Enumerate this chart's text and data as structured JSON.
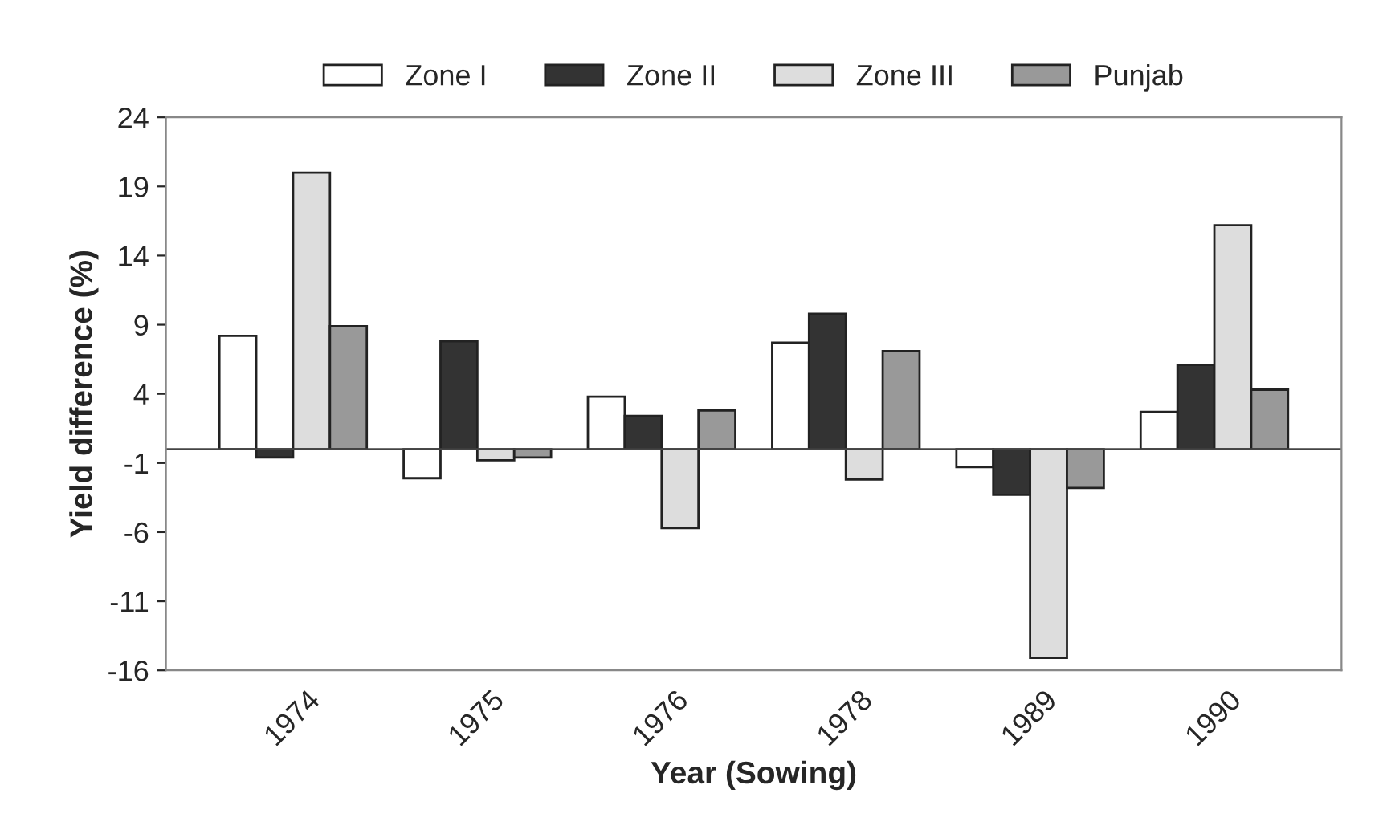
{
  "chart_data": {
    "type": "bar",
    "xlabel": "Year (Sowing)",
    "ylabel": "Yield difference (%)",
    "categories": [
      "1974",
      "1975",
      "1976",
      "1978",
      "1989",
      "1990"
    ],
    "series": [
      {
        "name": "Zone I",
        "color": "#ffffff",
        "values": [
          8.2,
          -2.1,
          3.8,
          7.7,
          -1.3,
          2.7
        ]
      },
      {
        "name": "Zone II",
        "color": "#333333",
        "values": [
          -0.6,
          7.8,
          2.4,
          9.8,
          -3.3,
          6.1
        ]
      },
      {
        "name": "Zone III",
        "color": "#dddddd",
        "values": [
          20,
          -0.8,
          -5.7,
          -2.2,
          -15.1,
          16.2
        ]
      },
      {
        "name": "Punjab",
        "color": "#999999",
        "values": [
          8.9,
          -0.6,
          2.8,
          7.1,
          -2.8,
          4.3
        ]
      }
    ],
    "ylim": [
      -16,
      24
    ],
    "yticks": [
      -16,
      -11,
      -6,
      -1,
      4,
      9,
      14,
      19,
      24
    ],
    "grid": false,
    "legend": "top"
  }
}
